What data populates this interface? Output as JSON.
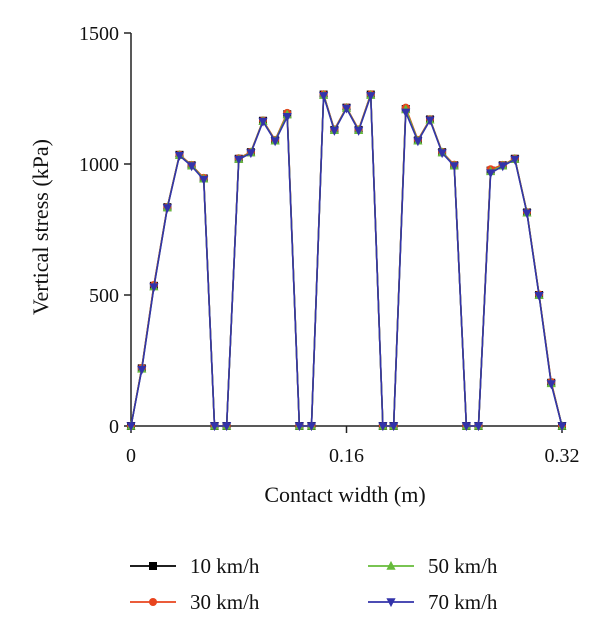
{
  "chart_data": {
    "type": "line",
    "title": "",
    "xlabel": "Contact width (m)",
    "ylabel": "Vertical stress (kPa)",
    "xlim": [
      0,
      0.32
    ],
    "ylim": [
      0,
      1500
    ],
    "xticks": [
      0,
      0.16,
      0.32
    ],
    "xtick_labels": [
      "0",
      "0.16",
      "0.32"
    ],
    "yticks": [
      0,
      500,
      1000,
      1500
    ],
    "ytick_labels": [
      "0",
      "500",
      "1000",
      "1500"
    ],
    "grid": false,
    "legend_position": "bottom",
    "x": [
      0,
      0.008,
      0.017,
      0.027,
      0.036,
      0.045,
      0.054,
      0.062,
      0.071,
      0.08,
      0.089,
      0.098,
      0.107,
      0.116,
      0.125,
      0.134,
      0.143,
      0.151,
      0.16,
      0.169,
      0.178,
      0.187,
      0.195,
      0.204,
      0.213,
      0.222,
      0.231,
      0.24,
      0.249,
      0.258,
      0.267,
      0.276,
      0.285,
      0.294,
      0.303,
      0.312,
      0.32
    ],
    "series": [
      {
        "name": "10 km/h",
        "color": "#000000",
        "marker": "square",
        "values": [
          0,
          220,
          535,
          835,
          1035,
          995,
          945,
          0,
          0,
          1020,
          1045,
          1165,
          1090,
          1190,
          0,
          0,
          1265,
          1130,
          1215,
          1130,
          1265,
          0,
          0,
          1210,
          1090,
          1170,
          1045,
          995,
          0,
          0,
          975,
          995,
          1020,
          815,
          500,
          165,
          0
        ]
      },
      {
        "name": "30 km/h",
        "color": "#e8441e",
        "marker": "circle",
        "values": [
          0,
          222,
          538,
          836,
          1036,
          996,
          947,
          0,
          0,
          1022,
          1046,
          1166,
          1092,
          1195,
          0,
          0,
          1266,
          1132,
          1216,
          1132,
          1266,
          0,
          0,
          1215,
          1092,
          1171,
          1046,
          997,
          0,
          0,
          980,
          996,
          1021,
          816,
          502,
          168,
          0
        ]
      },
      {
        "name": "50 km/h",
        "color": "#66bb3a",
        "marker": "triangle-up",
        "values": [
          0,
          218,
          532,
          834,
          1034,
          994,
          944,
          0,
          0,
          1019,
          1044,
          1164,
          1089,
          1189,
          0,
          0,
          1263,
          1129,
          1214,
          1129,
          1263,
          0,
          0,
          1208,
          1089,
          1169,
          1044,
          994,
          0,
          0,
          972,
          994,
          1019,
          814,
          499,
          163,
          0
        ]
      },
      {
        "name": "70 km/h",
        "color": "#3333aa",
        "marker": "triangle-down",
        "values": [
          0,
          215,
          530,
          832,
          1032,
          992,
          940,
          0,
          0,
          1017,
          1042,
          1162,
          1087,
          1180,
          0,
          0,
          1260,
          1127,
          1212,
          1127,
          1260,
          0,
          0,
          1197,
          1087,
          1167,
          1042,
          992,
          0,
          0,
          965,
          992,
          1017,
          812,
          497,
          160,
          0
        ]
      }
    ]
  }
}
